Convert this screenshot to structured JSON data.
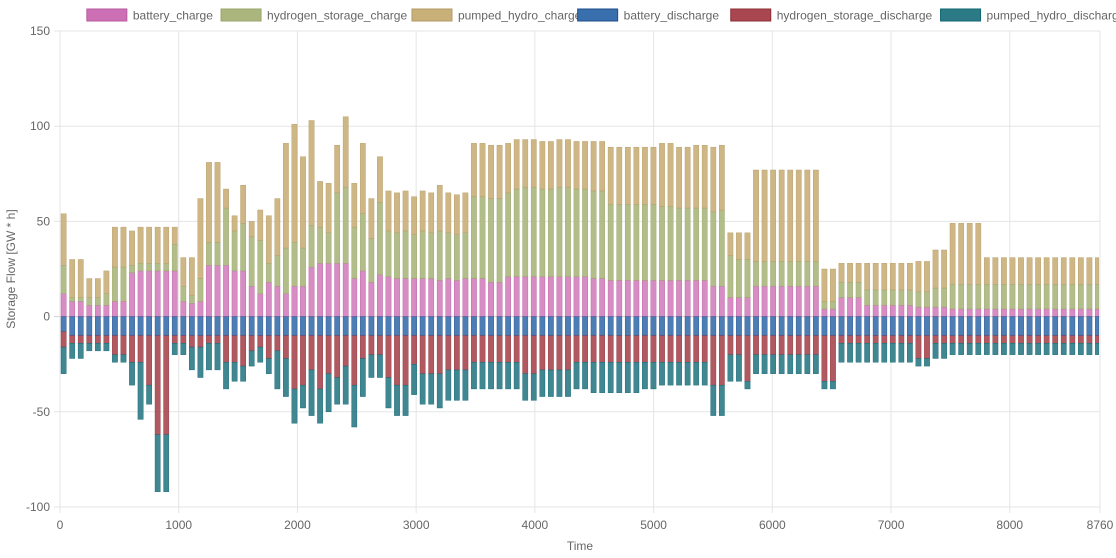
{
  "chart_data": {
    "type": "bar",
    "stacked": true,
    "xlabel": "Time",
    "ylabel": "Storage Flow [GW * h]",
    "xlim": [
      0,
      8760
    ],
    "ylim": [
      -100,
      150
    ],
    "x_ticks": [
      "0",
      "1000",
      "2000",
      "3000",
      "4000",
      "5000",
      "6000",
      "7000",
      "8000",
      "8760"
    ],
    "y_ticks": [
      "150",
      "100",
      "50",
      "0",
      "-50",
      "-100"
    ],
    "grid": true,
    "legend_position": "top",
    "block_hours": 72,
    "series": [
      {
        "name": "battery_charge",
        "direction": "charge",
        "color": "#cd6fb5",
        "border": "#b85a9f",
        "fill_opacity": 0.8,
        "values": [
          12,
          8,
          8,
          6,
          6,
          6,
          8,
          8,
          23,
          24,
          24,
          24,
          24,
          24,
          8,
          7,
          8,
          27,
          27,
          27,
          24,
          24,
          16,
          12,
          18,
          16,
          12,
          16,
          16,
          26,
          28,
          28,
          28,
          28,
          20,
          24,
          18,
          22,
          21,
          20,
          20,
          20,
          20,
          20,
          19,
          20,
          19,
          20,
          20,
          20,
          18,
          18,
          21,
          21,
          21,
          21,
          21,
          21,
          21,
          21,
          21,
          21,
          20,
          20,
          19,
          19,
          19,
          19,
          19,
          19,
          19,
          19,
          19,
          19,
          19,
          19,
          16,
          16,
          10,
          10,
          10,
          16,
          16,
          16,
          16,
          16,
          16,
          16,
          16,
          4,
          4,
          10,
          10,
          10,
          6,
          6,
          6,
          6,
          6,
          6,
          5,
          5,
          5,
          5,
          4,
          4,
          4,
          4,
          4,
          4,
          4,
          4,
          4,
          4,
          4,
          4,
          4,
          4,
          4,
          4,
          4,
          4,
          4
        ]
      },
      {
        "name": "hydrogen_storage_charge",
        "direction": "charge",
        "color": "#aab67d",
        "border": "#98a56a",
        "fill_opacity": 0.9,
        "values": [
          15,
          2,
          2,
          4,
          4,
          6,
          18,
          18,
          4,
          4,
          4,
          4,
          4,
          14,
          8,
          4,
          12,
          12,
          12,
          30,
          21,
          25,
          26,
          28,
          10,
          16,
          24,
          23,
          20,
          22,
          19,
          16,
          37,
          40,
          27,
          30,
          23,
          38,
          24,
          24,
          25,
          23,
          25,
          24,
          26,
          24,
          24,
          24,
          43,
          43,
          44,
          44,
          44,
          46,
          47,
          47,
          46,
          46,
          47,
          47,
          46,
          46,
          46,
          46,
          40,
          40,
          40,
          40,
          40,
          40,
          39,
          39,
          38,
          38,
          38,
          38,
          39,
          40,
          22,
          20,
          20,
          13,
          13,
          13,
          13,
          13,
          13,
          13,
          13,
          4,
          4,
          8,
          8,
          8,
          8,
          8,
          8,
          8,
          8,
          8,
          8,
          8,
          10,
          10,
          13,
          13,
          13,
          13,
          13,
          13,
          13,
          13,
          13,
          13,
          13,
          13,
          13,
          13,
          13,
          13,
          13,
          13,
          13
        ]
      },
      {
        "name": "pumped_hydro_charge",
        "direction": "charge",
        "color": "#c9af78",
        "border": "#b39a65",
        "fill_opacity": 0.9,
        "values": [
          27,
          20,
          20,
          10,
          10,
          12,
          21,
          21,
          18,
          19,
          19,
          19,
          19,
          9,
          15,
          20,
          42,
          42,
          42,
          10,
          8,
          20,
          8,
          16,
          25,
          30,
          55,
          62,
          48,
          55,
          24,
          26,
          25,
          37,
          23,
          37,
          21,
          24,
          21,
          21,
          21,
          20,
          21,
          21,
          24,
          21,
          21,
          21,
          28,
          28,
          28,
          28,
          26,
          26,
          25,
          25,
          25,
          25,
          25,
          25,
          25,
          25,
          26,
          26,
          30,
          30,
          30,
          30,
          30,
          30,
          33,
          33,
          32,
          32,
          33,
          33,
          34,
          34,
          12,
          14,
          14,
          48,
          48,
          48,
          48,
          48,
          48,
          48,
          48,
          17,
          17,
          10,
          10,
          10,
          14,
          14,
          14,
          14,
          14,
          14,
          16,
          16,
          20,
          20,
          32,
          32,
          32,
          32,
          14,
          14,
          14,
          14,
          14,
          14,
          14,
          14,
          14,
          14,
          14,
          14,
          14,
          14,
          14
        ]
      },
      {
        "name": "battery_discharge",
        "direction": "discharge",
        "color": "#3a6fad",
        "border": "#1d4e8c",
        "fill_opacity": 0.9,
        "values": [
          8,
          10,
          10,
          10,
          10,
          10,
          10,
          10,
          10,
          10,
          10,
          10,
          10,
          10,
          10,
          10,
          10,
          10,
          10,
          10,
          10,
          10,
          10,
          10,
          10,
          10,
          10,
          10,
          10,
          10,
          10,
          10,
          10,
          10,
          10,
          10,
          10,
          10,
          10,
          10,
          10,
          10,
          10,
          10,
          10,
          10,
          10,
          10,
          10,
          10,
          10,
          10,
          10,
          10,
          10,
          10,
          10,
          10,
          10,
          10,
          10,
          10,
          10,
          10,
          10,
          10,
          10,
          10,
          10,
          10,
          10,
          10,
          10,
          10,
          10,
          10,
          10,
          10,
          10,
          10,
          10,
          10,
          10,
          10,
          10,
          10,
          10,
          10,
          10,
          10,
          10,
          10,
          10,
          10,
          10,
          10,
          10,
          10,
          10,
          10,
          10,
          10,
          10,
          10,
          10,
          10,
          10,
          10,
          10,
          10,
          10,
          10,
          10,
          10,
          10,
          10,
          10,
          10,
          10,
          10,
          10,
          10,
          10
        ]
      },
      {
        "name": "hydrogen_storage_discharge",
        "direction": "discharge",
        "color": "#a8474f",
        "border": "#8e2f37",
        "fill_opacity": 0.9,
        "values": [
          8,
          4,
          4,
          4,
          4,
          4,
          10,
          10,
          14,
          14,
          26,
          52,
          52,
          4,
          4,
          6,
          6,
          4,
          4,
          14,
          14,
          16,
          8,
          6,
          12,
          8,
          12,
          28,
          26,
          18,
          28,
          20,
          22,
          16,
          26,
          12,
          10,
          10,
          22,
          26,
          26,
          15,
          20,
          20,
          20,
          18,
          18,
          18,
          14,
          14,
          14,
          14,
          14,
          14,
          20,
          20,
          18,
          18,
          18,
          18,
          14,
          14,
          14,
          14,
          14,
          14,
          14,
          14,
          14,
          14,
          14,
          14,
          14,
          14,
          14,
          14,
          26,
          26,
          10,
          10,
          24,
          10,
          10,
          10,
          10,
          10,
          10,
          10,
          10,
          24,
          24,
          4,
          4,
          4,
          4,
          4,
          4,
          4,
          4,
          4,
          12,
          12,
          4,
          4,
          4,
          4,
          4,
          4,
          4,
          4,
          4,
          4,
          4,
          4,
          4,
          4,
          4,
          4,
          4,
          4,
          4,
          4,
          4
        ]
      },
      {
        "name": "pumped_hydro_discharge",
        "direction": "discharge",
        "color": "#2b7a85",
        "border": "#106574",
        "fill_opacity": 0.9,
        "values": [
          14,
          8,
          8,
          4,
          4,
          4,
          4,
          4,
          12,
          30,
          10,
          30,
          30,
          6,
          6,
          12,
          16,
          14,
          14,
          14,
          10,
          8,
          8,
          8,
          8,
          20,
          20,
          18,
          12,
          24,
          18,
          20,
          14,
          20,
          22,
          20,
          12,
          12,
          16,
          16,
          16,
          16,
          16,
          16,
          18,
          16,
          16,
          16,
          14,
          14,
          14,
          14,
          14,
          14,
          14,
          14,
          14,
          14,
          14,
          14,
          14,
          14,
          16,
          16,
          16,
          16,
          16,
          16,
          14,
          14,
          12,
          12,
          12,
          12,
          12,
          12,
          16,
          16,
          14,
          14,
          4,
          10,
          10,
          10,
          10,
          10,
          10,
          10,
          10,
          4,
          4,
          10,
          10,
          10,
          10,
          10,
          10,
          10,
          10,
          10,
          4,
          4,
          8,
          8,
          6,
          6,
          6,
          6,
          6,
          6,
          6,
          6,
          6,
          6,
          6,
          6,
          6,
          6,
          6,
          6,
          6,
          6,
          6
        ]
      }
    ]
  }
}
